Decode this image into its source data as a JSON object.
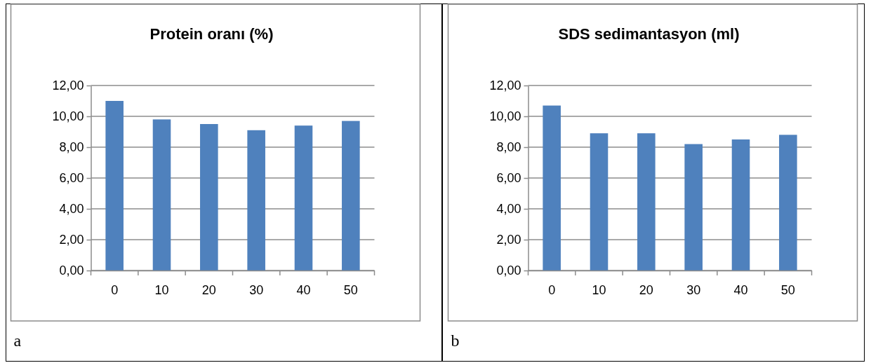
{
  "chart_data": [
    {
      "type": "bar",
      "title": "Protein oranı (%)",
      "categories": [
        "0",
        "10",
        "20",
        "30",
        "40",
        "50"
      ],
      "values": [
        11.0,
        9.8,
        9.5,
        9.1,
        9.4,
        9.7
      ],
      "color": "#4f81bd",
      "ylim": [
        0,
        12
      ],
      "yticks": [
        {
          "value": 0,
          "label": "0,00"
        },
        {
          "value": 2,
          "label": "2,00"
        },
        {
          "value": 4,
          "label": "4,00"
        },
        {
          "value": 6,
          "label": "6,00"
        },
        {
          "value": 8,
          "label": "8,00"
        },
        {
          "value": 10,
          "label": "10,00"
        },
        {
          "value": 12,
          "label": "12,00"
        }
      ],
      "grid": "y",
      "annotations": [
        "a"
      ]
    },
    {
      "type": "bar",
      "title": "SDS sedimantasyon (ml)",
      "categories": [
        "0",
        "10",
        "20",
        "30",
        "40",
        "50"
      ],
      "values": [
        10.7,
        8.9,
        8.9,
        8.2,
        8.5,
        8.8
      ],
      "color": "#4f81bd",
      "ylim": [
        0,
        12
      ],
      "yticks": [
        {
          "value": 0,
          "label": "0,00"
        },
        {
          "value": 2,
          "label": "2,00"
        },
        {
          "value": 4,
          "label": "4,00"
        },
        {
          "value": 6,
          "label": "6,00"
        },
        {
          "value": 8,
          "label": "8,00"
        },
        {
          "value": 10,
          "label": "10,00"
        },
        {
          "value": 12,
          "label": "12,00"
        }
      ],
      "grid": "y",
      "annotations": [
        "b"
      ]
    }
  ]
}
